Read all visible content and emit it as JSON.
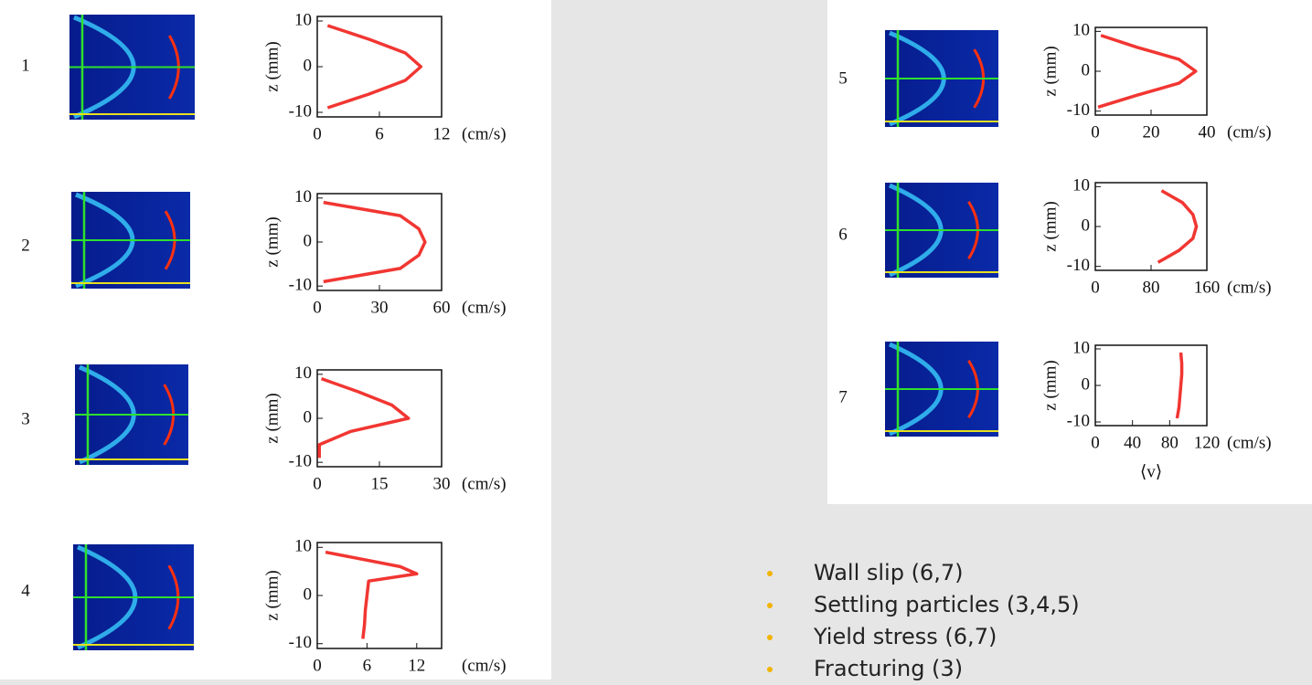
{
  "panels": [
    {
      "label": "1",
      "ylabel": "z (mm)",
      "unit": "(cm/s)",
      "xlim": [
        0,
        12
      ],
      "xticks": [
        0,
        6,
        12
      ],
      "ylim": [
        -11,
        11
      ],
      "yticks": [
        10,
        0,
        -10
      ],
      "z": [
        -9,
        -6,
        -3,
        0,
        3,
        6,
        9
      ],
      "v": [
        1,
        5,
        8.5,
        10,
        8.5,
        5,
        1
      ]
    },
    {
      "label": "2",
      "ylabel": "z (mm)",
      "unit": "(cm/s)",
      "xlim": [
        0,
        60
      ],
      "xticks": [
        0,
        30,
        60
      ],
      "ylim": [
        -11,
        11
      ],
      "yticks": [
        10,
        0,
        -10
      ],
      "z": [
        -9,
        -6,
        -3,
        0,
        3,
        6,
        9
      ],
      "v": [
        3,
        40,
        49,
        52,
        49,
        40,
        3
      ]
    },
    {
      "label": "3",
      "ylabel": "z (mm)",
      "unit": "(cm/s)",
      "xlim": [
        0,
        30
      ],
      "xticks": [
        0,
        15,
        30
      ],
      "ylim": [
        -11,
        11
      ],
      "yticks": [
        10,
        0,
        -10
      ],
      "z": [
        -9,
        -6,
        -3,
        0,
        3,
        6,
        9
      ],
      "v": [
        0.5,
        0.5,
        8,
        22,
        18,
        10,
        1
      ]
    },
    {
      "label": "4",
      "ylabel": "z (mm)",
      "unit": "(cm/s)",
      "xlim": [
        0,
        15
      ],
      "xticks": [
        0,
        6,
        12
      ],
      "ylim": [
        -11,
        11
      ],
      "yticks": [
        10,
        0,
        -10
      ],
      "z": [
        -9,
        -6,
        -3,
        0,
        3,
        4.5,
        6,
        9
      ],
      "v": [
        5.5,
        5.7,
        5.8,
        6,
        6.2,
        12,
        10,
        1
      ]
    },
    {
      "label": "5",
      "ylabel": "z (mm)",
      "unit": "(cm/s)",
      "xlim": [
        0,
        40
      ],
      "xticks": [
        0,
        20,
        40
      ],
      "ylim": [
        -11,
        11
      ],
      "yticks": [
        10,
        0,
        -10
      ],
      "z": [
        -9,
        -6,
        -3,
        0,
        3,
        6,
        9
      ],
      "v": [
        1,
        15,
        30,
        36,
        30,
        15,
        2
      ]
    },
    {
      "label": "6",
      "ylabel": "z (mm)",
      "unit": "(cm/s)",
      "xlim": [
        0,
        160
      ],
      "xticks": [
        0,
        80,
        160
      ],
      "ylim": [
        -11,
        11
      ],
      "yticks": [
        10,
        0,
        -10
      ],
      "z": [
        -9,
        -6,
        -3,
        0,
        3,
        6,
        9
      ],
      "v": [
        90,
        120,
        140,
        145,
        140,
        125,
        95
      ]
    },
    {
      "label": "7",
      "ylabel": "z (mm)",
      "unit": "(cm/s)",
      "xlabel": "⟨v⟩",
      "xlim": [
        0,
        120
      ],
      "xticks": [
        0,
        40,
        80,
        120
      ],
      "ylim": [
        -11,
        11
      ],
      "yticks": [
        10,
        0,
        -10
      ],
      "z": [
        -9,
        -6,
        -3,
        0,
        3,
        6,
        9
      ],
      "v": [
        88,
        90,
        91,
        92,
        93,
        93,
        92
      ]
    }
  ],
  "bullets": [
    "Wall slip (6,7)",
    "Settling particles (3,4,5)",
    "Yield stress (6,7)",
    "Fracturing (3)"
  ]
}
